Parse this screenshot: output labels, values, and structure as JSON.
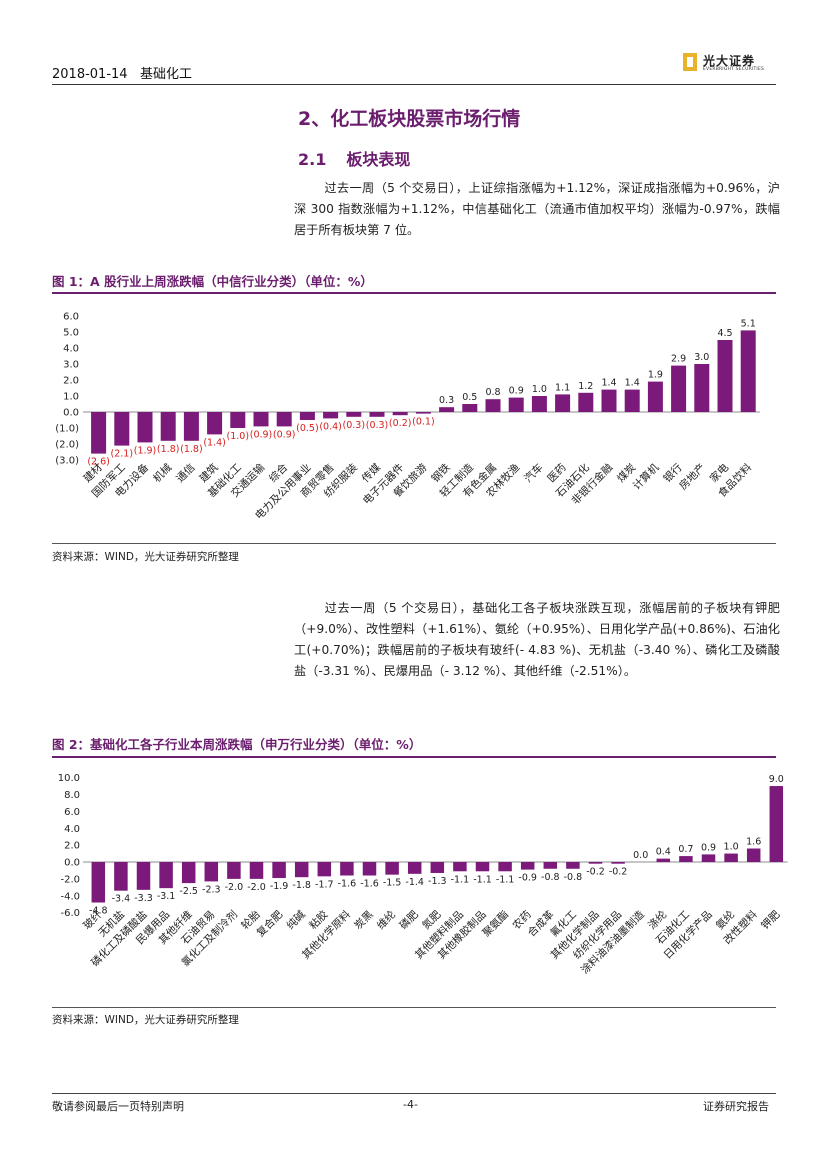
{
  "header": {
    "date": "2018-01-14",
    "sector": "基础化工",
    "logo_cn": "光大证券",
    "logo_en": "EVERBRIGHT SECURITIES"
  },
  "section": {
    "heading": "2、化工板块股票市场行情",
    "sub_number": "2.1",
    "sub_title": "板块表现"
  },
  "para1": "过去一周（5 个交易日），上证综指涨幅为+1.12%，深证成指涨幅为+0.96%，沪深 300 指数涨幅为+1.12%，中信基础化工（流通市值加权平均）涨幅为-0.97%，跌幅居于所有板块第 7 位。",
  "para2": "过去一周（5 个交易日），基础化工各子板块涨跌互现，涨幅居前的子板块有钾肥（+9.0%）、改性塑料（+1.61%）、氨纶（+0.95%）、日用化学产品(+0.86%)、石油化工(+0.70%)；跌幅居前的子板块有玻纤(- 4.83 %)、无机盐（-3.40 %）、磷化工及磷酸盐（-3.31 %）、民爆用品（- 3.12 %）、其他纤维（-2.51%）。",
  "fig1": {
    "title": "图 1：A 股行业上周涨跌幅（中信行业分类）（单位：%）",
    "source": "资料来源：WIND，光大证券研究所整理"
  },
  "fig2": {
    "title": "图 2：基础化工各子行业本周涨跌幅（申万行业分类）（单位：%）",
    "source": "资料来源：WIND，光大证券研究所整理"
  },
  "footer": {
    "left": "敬请参阅最后一页特别声明",
    "page": "-4-",
    "right": "证券研究报告"
  },
  "colors": {
    "bar": "#7b1a7a",
    "neg_label": "#d62020",
    "accent": "#6b1e6e"
  },
  "chart_data": [
    {
      "type": "bar",
      "title": "A 股行业上周涨跌幅（中信行业分类）（单位：%）",
      "ylim": [
        -3.0,
        6.0
      ],
      "yticks": [
        "6.0",
        "5.0",
        "4.0",
        "3.0",
        "2.0",
        "1.0",
        "0.0",
        "(1.0)",
        "(2.0)",
        "(3.0)"
      ],
      "categories": [
        "建材",
        "国防军工",
        "电力设备",
        "机械",
        "通信",
        "建筑",
        "基础化工",
        "交通运输",
        "综合",
        "电力及公用事业",
        "商贸零售",
        "纺织服装",
        "传媒",
        "电子元器件",
        "餐饮旅游",
        "钢铁",
        "轻工制造",
        "有色金属",
        "农林牧渔",
        "汽车",
        "医药",
        "石油石化",
        "非银行金融",
        "煤炭",
        "计算机",
        "银行",
        "房地产",
        "家电",
        "食品饮料"
      ],
      "values": [
        -2.6,
        -2.1,
        -1.9,
        -1.8,
        -1.8,
        -1.4,
        -1.0,
        -0.9,
        -0.9,
        -0.5,
        -0.4,
        -0.3,
        -0.3,
        -0.2,
        -0.1,
        0.3,
        0.5,
        0.8,
        0.9,
        1.0,
        1.1,
        1.2,
        1.4,
        1.4,
        1.9,
        2.9,
        3.0,
        4.5,
        5.1
      ],
      "labels": [
        "(2.6)",
        "(2.1)",
        "(1.9)",
        "(1.8)",
        "(1.8)",
        "(1.4)",
        "(1.0)",
        "(0.9)",
        "(0.9)",
        "(0.5)",
        "(0.4)",
        "(0.3)",
        "(0.3)",
        "(0.2)",
        "(0.1)",
        "0.3",
        "0.5",
        "0.8",
        "0.9",
        "1.0",
        "1.1",
        "1.2",
        "1.4",
        "1.4",
        "1.9",
        "2.9",
        "3.0",
        "4.5",
        "5.1"
      ]
    },
    {
      "type": "bar",
      "title": "基础化工各子行业本周涨跌幅（申万行业分类）（单位：%）",
      "ylim": [
        -6.0,
        10.0
      ],
      "yticks": [
        "10.0",
        "8.0",
        "6.0",
        "4.0",
        "2.0",
        "0.0",
        "-2.0",
        "-4.0",
        "-6.0"
      ],
      "categories": [
        "玻纤",
        "无机盐",
        "磷化工及磷酸盐",
        "民爆用品",
        "其他纤维",
        "石油贸易",
        "氯化工及制冷剂",
        "轮胎",
        "复合肥",
        "纯碱",
        "粘胶",
        "其他化学原料",
        "炭黑",
        "维纶",
        "磷肥",
        "氮肥",
        "其他塑料制品",
        "其他橡胶制品",
        "聚氨酯",
        "农药",
        "合成革",
        "氟化工",
        "其他化学制品",
        "纺织化学用品",
        "涂料油漆油墨制造",
        "涤纶",
        "石油化工",
        "日用化学产品",
        "氨纶",
        "改性塑料",
        "钾肥"
      ],
      "values": [
        -4.8,
        -3.4,
        -3.3,
        -3.1,
        -2.5,
        -2.3,
        -2.0,
        -2.0,
        -1.9,
        -1.8,
        -1.7,
        -1.6,
        -1.6,
        -1.5,
        -1.4,
        -1.3,
        -1.1,
        -1.1,
        -1.1,
        -0.9,
        -0.8,
        -0.8,
        -0.2,
        -0.2,
        0.0,
        0.4,
        0.7,
        0.9,
        1.0,
        1.6,
        9.0
      ],
      "labels": [
        "-4.8",
        "-3.4",
        "-3.3",
        "-3.1",
        "-2.5",
        "-2.3",
        "-2.0",
        "-2.0",
        "-1.9",
        "-1.8",
        "-1.7",
        "-1.6",
        "-1.6",
        "-1.5",
        "-1.4",
        "-1.3",
        "-1.1",
        "-1.1",
        "-1.1",
        "-0.9",
        "-0.8",
        "-0.8",
        "-0.2",
        "-0.2",
        "0.0",
        "0.4",
        "0.7",
        "0.9",
        "1.0",
        "1.6",
        "9.0"
      ]
    }
  ]
}
